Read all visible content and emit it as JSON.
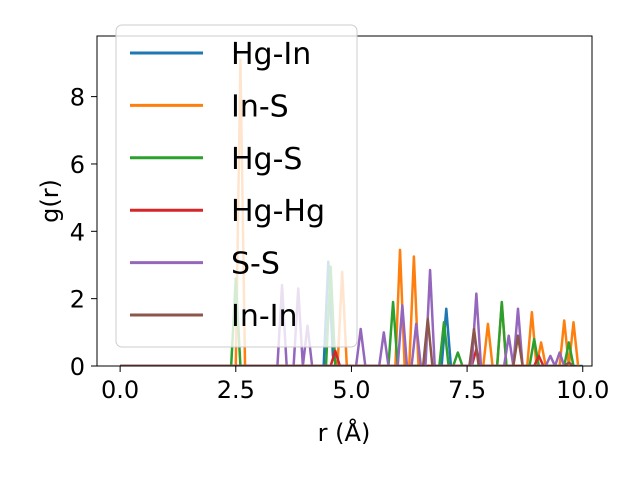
{
  "chart_data": {
    "type": "line",
    "xlabel": "r (Å)",
    "ylabel": "g(r)",
    "xlim": [
      -0.5,
      10.2
    ],
    "ylim": [
      0,
      9.8
    ],
    "xticks": [
      0.0,
      2.5,
      5.0,
      7.5,
      10.0
    ],
    "xtick_labels": [
      "0.0",
      "2.5",
      "5.0",
      "7.5",
      "10.0"
    ],
    "yticks": [
      0,
      2,
      4,
      6,
      8
    ],
    "ytick_labels": [
      "0",
      "2",
      "4",
      "6",
      "8"
    ],
    "grid": false,
    "legend_position": "upper-left",
    "series": [
      {
        "name": "Hg-In",
        "color": "#1f77b4",
        "x": [
          0,
          4.4,
          4.5,
          4.6,
          4.7,
          6.95,
          7.05,
          7.15,
          10
        ],
        "y": [
          0,
          0,
          3.1,
          0.3,
          0,
          0,
          1.7,
          0,
          0
        ]
      },
      {
        "name": "In-S",
        "color": "#ff7f0e",
        "x": [
          0,
          2.5,
          2.6,
          2.7,
          4.7,
          4.8,
          4.9,
          5.95,
          6.05,
          6.15,
          6.25,
          6.35,
          6.45,
          7.85,
          7.95,
          8.05,
          8.15,
          8.25,
          8.35,
          8.8,
          8.9,
          9.0,
          9.1,
          9.2,
          9.5,
          9.6,
          9.7,
          9.8,
          9.9
        ],
        "y": [
          0,
          0,
          9.1,
          0,
          0,
          2.8,
          0,
          0,
          3.45,
          0,
          0,
          3.25,
          0,
          0,
          1.25,
          0,
          0,
          1.85,
          0,
          0,
          1.6,
          0,
          0.7,
          0,
          0,
          1.35,
          0,
          1.3,
          0
        ]
      },
      {
        "name": "Hg-S",
        "color": "#2ca02c",
        "x": [
          0,
          2.4,
          2.5,
          2.6,
          4.45,
          4.55,
          4.65,
          5.8,
          5.9,
          6.0,
          6.9,
          7.0,
          7.1,
          7.2,
          7.3,
          7.4,
          8.15,
          8.25,
          8.35,
          8.85,
          8.95,
          9.05,
          9.6,
          9.7,
          9.8
        ],
        "y": [
          0,
          0,
          2.6,
          0,
          0,
          2.95,
          0,
          0,
          1.9,
          0,
          0,
          1.3,
          0,
          0,
          0.4,
          0,
          0,
          1.9,
          0,
          0,
          0.8,
          0,
          0,
          0.7,
          0
        ]
      },
      {
        "name": "Hg-Hg",
        "color": "#d62728",
        "x": [
          0,
          4.55,
          4.65,
          4.75,
          7.6,
          7.7,
          7.8,
          8.95,
          9.05,
          9.15
        ],
        "y": [
          0,
          0,
          0.45,
          0,
          0,
          0.5,
          0,
          0,
          0.3,
          0
        ]
      },
      {
        "name": "S-S",
        "color": "#9467bd",
        "x": [
          0,
          3.4,
          3.5,
          3.6,
          3.75,
          3.85,
          3.95,
          4.05,
          4.15,
          5.1,
          5.2,
          5.3,
          5.6,
          5.7,
          5.8,
          6.0,
          6.1,
          6.2,
          6.3,
          6.4,
          6.5,
          6.6,
          6.7,
          6.8,
          7.6,
          7.7,
          7.8,
          8.3,
          8.4,
          8.5,
          8.6,
          8.7,
          9.2,
          9.3,
          9.4,
          9.5,
          9.6
        ],
        "y": [
          0,
          0,
          2.4,
          0,
          0,
          2.3,
          0,
          1.2,
          0,
          0,
          1.1,
          0,
          0,
          1.0,
          0,
          0,
          1.8,
          0,
          0,
          1.25,
          0,
          0,
          2.85,
          0,
          0,
          2.15,
          0,
          0,
          0.9,
          0,
          1.7,
          0,
          0,
          0.3,
          0,
          0.4,
          0
        ]
      },
      {
        "name": "In-In",
        "color": "#8c564b",
        "x": [
          0,
          6.55,
          6.65,
          6.75,
          6.85,
          7.55,
          7.65,
          7.75,
          8.5,
          8.6,
          8.7,
          9.6,
          9.7,
          9.8
        ],
        "y": [
          0,
          0,
          1.4,
          0,
          0,
          0,
          1.1,
          0,
          0,
          0.9,
          0,
          0,
          0.1,
          0
        ]
      }
    ]
  }
}
